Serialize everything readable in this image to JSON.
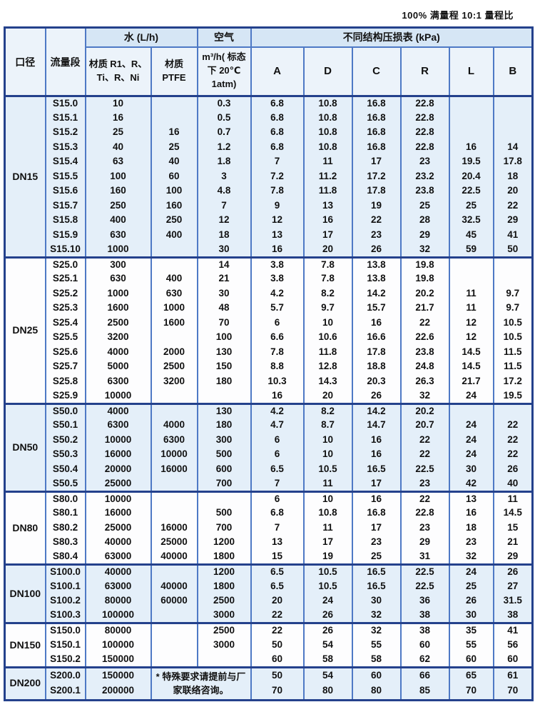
{
  "page": {
    "top_note": "100% 满量程  10:1 量程比"
  },
  "table": {
    "headers": {
      "diameter": "口径",
      "flow_segment": "流量段",
      "water": "水 (L/h)",
      "water_material_1": "材质 R1、R、Ti、R、Ni",
      "water_material_2": "材质 PTFE",
      "air": "空气",
      "air_sub": "m³/h( 标态下 20℃ 1atm)",
      "pressure_loss": "不同结构压损表  (kPa)",
      "pressure_cols": [
        "A",
        "D",
        "C",
        "R",
        "L",
        "B"
      ]
    },
    "note": "* 特殊要求请提前与厂家联络咨询。",
    "colors": {
      "border_dark": "#24418c",
      "border_mid": "#4e79c5",
      "header_fill": "#d6e6f5",
      "group_blue_fill": "#e4eff9",
      "group_white_fill": "#fdfdfe"
    },
    "groups": [
      {
        "name": "DN15",
        "shade": "blue",
        "rows": [
          [
            "S15.0",
            "10",
            "",
            "0.3",
            "6.8",
            "10.8",
            "16.8",
            "22.8",
            "",
            ""
          ],
          [
            "S15.1",
            "16",
            "",
            "0.5",
            "6.8",
            "10.8",
            "16.8",
            "22.8",
            "",
            ""
          ],
          [
            "S15.2",
            "25",
            "16",
            "0.7",
            "6.8",
            "10.8",
            "16.8",
            "22.8",
            "",
            ""
          ],
          [
            "S15.3",
            "40",
            "25",
            "1.2",
            "6.8",
            "10.8",
            "16.8",
            "22.8",
            "16",
            "14"
          ],
          [
            "S15.4",
            "63",
            "40",
            "1.8",
            "7",
            "11",
            "17",
            "23",
            "19.5",
            "17.8"
          ],
          [
            "S15.5",
            "100",
            "60",
            "3",
            "7.2",
            "11.2",
            "17.2",
            "23.2",
            "20.4",
            "18"
          ],
          [
            "S15.6",
            "160",
            "100",
            "4.8",
            "7.8",
            "11.8",
            "17.8",
            "23.8",
            "22.5",
            "20"
          ],
          [
            "S15.7",
            "250",
            "160",
            "7",
            "9",
            "13",
            "19",
            "25",
            "25",
            "22"
          ],
          [
            "S15.8",
            "400",
            "250",
            "12",
            "12",
            "16",
            "22",
            "28",
            "32.5",
            "29"
          ],
          [
            "S15.9",
            "630",
            "400",
            "18",
            "13",
            "17",
            "23",
            "29",
            "45",
            "41"
          ],
          [
            "S15.10",
            "1000",
            "",
            "30",
            "16",
            "20",
            "26",
            "32",
            "59",
            "50"
          ]
        ]
      },
      {
        "name": "DN25",
        "shade": "white",
        "rows": [
          [
            "S25.0",
            "300",
            "",
            "14",
            "3.8",
            "7.8",
            "13.8",
            "19.8",
            "",
            ""
          ],
          [
            "S25.1",
            "630",
            "400",
            "21",
            "3.8",
            "7.8",
            "13.8",
            "19.8",
            "",
            ""
          ],
          [
            "S25.2",
            "1000",
            "630",
            "30",
            "4.2",
            "8.2",
            "14.2",
            "20.2",
            "11",
            "9.7"
          ],
          [
            "S25.3",
            "1600",
            "1000",
            "48",
            "5.7",
            "9.7",
            "15.7",
            "21.7",
            "11",
            "9.7"
          ],
          [
            "S25.4",
            "2500",
            "1600",
            "70",
            "6",
            "10",
            "16",
            "22",
            "12",
            "10.5"
          ],
          [
            "S25.5",
            "3200",
            "",
            "100",
            "6.6",
            "10.6",
            "16.6",
            "22.6",
            "12",
            "10.5"
          ],
          [
            "S25.6",
            "4000",
            "2000",
            "130",
            "7.8",
            "11.8",
            "17.8",
            "23.8",
            "14.5",
            "11.5"
          ],
          [
            "S25.7",
            "5000",
            "2500",
            "150",
            "8.8",
            "12.8",
            "18.8",
            "24.8",
            "14.5",
            "11.5"
          ],
          [
            "S25.8",
            "6300",
            "3200",
            "180",
            "10.3",
            "14.3",
            "20.3",
            "26.3",
            "21.7",
            "17.2"
          ],
          [
            "S25.9",
            "10000",
            "",
            "",
            "16",
            "20",
            "26",
            "32",
            "24",
            "19.5"
          ]
        ]
      },
      {
        "name": "DN50",
        "shade": "blue",
        "rows": [
          [
            "S50.0",
            "4000",
            "",
            "130",
            "4.2",
            "8.2",
            "14.2",
            "20.2",
            "",
            ""
          ],
          [
            "S50.1",
            "6300",
            "4000",
            "180",
            "4.7",
            "8.7",
            "14.7",
            "20.7",
            "24",
            "22"
          ],
          [
            "S50.2",
            "10000",
            "6300",
            "300",
            "6",
            "10",
            "16",
            "22",
            "24",
            "22"
          ],
          [
            "S50.3",
            "16000",
            "10000",
            "500",
            "6",
            "10",
            "16",
            "22",
            "24",
            "22"
          ],
          [
            "S50.4",
            "20000",
            "16000",
            "600",
            "6.5",
            "10.5",
            "16.5",
            "22.5",
            "30",
            "26"
          ],
          [
            "S50.5",
            "25000",
            "",
            "700",
            "7",
            "11",
            "17",
            "23",
            "42",
            "40"
          ]
        ]
      },
      {
        "name": "DN80",
        "shade": "white",
        "rows": [
          [
            "S80.0",
            "10000",
            "",
            "",
            "6",
            "10",
            "16",
            "22",
            "13",
            "11"
          ],
          [
            "S80.1",
            "16000",
            "",
            "500",
            "6.8",
            "10.8",
            "16.8",
            "22.8",
            "16",
            "14.5"
          ],
          [
            "S80.2",
            "25000",
            "16000",
            "700",
            "7",
            "11",
            "17",
            "23",
            "18",
            "15"
          ],
          [
            "S80.3",
            "40000",
            "25000",
            "1200",
            "13",
            "17",
            "23",
            "29",
            "23",
            "21"
          ],
          [
            "S80.4",
            "63000",
            "40000",
            "1800",
            "15",
            "19",
            "25",
            "31",
            "32",
            "29"
          ]
        ]
      },
      {
        "name": "DN100",
        "shade": "blue",
        "rows": [
          [
            "S100.0",
            "40000",
            "",
            "1200",
            "6.5",
            "10.5",
            "16.5",
            "22.5",
            "24",
            "26"
          ],
          [
            "S100.1",
            "63000",
            "40000",
            "1800",
            "6.5",
            "10.5",
            "16.5",
            "22.5",
            "25",
            "27"
          ],
          [
            "S100.2",
            "80000",
            "60000",
            "2500",
            "20",
            "24",
            "30",
            "36",
            "26",
            "31.5"
          ],
          [
            "S100.3",
            "100000",
            "",
            "3000",
            "22",
            "26",
            "32",
            "38",
            "30",
            "38"
          ]
        ]
      },
      {
        "name": "DN150",
        "shade": "white",
        "rows": [
          [
            "S150.0",
            "80000",
            "",
            "2500",
            "22",
            "26",
            "32",
            "38",
            "35",
            "41"
          ],
          [
            "S150.1",
            "100000",
            "",
            "3000",
            "50",
            "54",
            "55",
            "60",
            "55",
            "56"
          ],
          [
            "S150.2",
            "150000",
            "",
            "",
            "60",
            "58",
            "58",
            "62",
            "60",
            "60"
          ]
        ]
      },
      {
        "name": "DN200",
        "shade": "blue",
        "note_span": true,
        "rows": [
          [
            "S200.0",
            "150000",
            "",
            "",
            "50",
            "54",
            "60",
            "66",
            "65",
            "61"
          ],
          [
            "S200.1",
            "200000",
            "",
            "",
            "70",
            "80",
            "80",
            "85",
            "70",
            "70"
          ]
        ]
      }
    ]
  }
}
